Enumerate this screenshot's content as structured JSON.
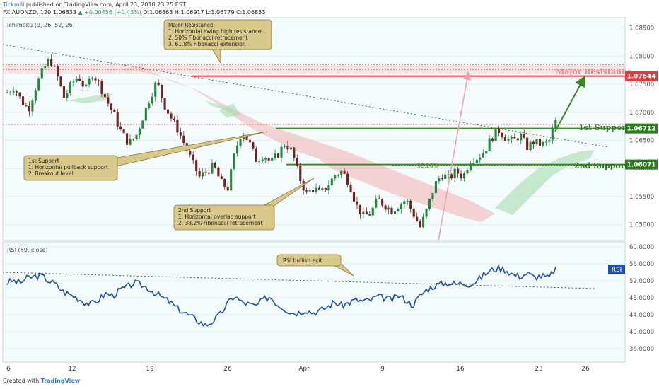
{
  "header": {
    "brand": "Tickmill",
    "published": "published on TradingView.com, April 23, 2018 23:25 EST",
    "symbol": "FX:AUDNZD, 120",
    "last": "1.06833",
    "change": "▲ +0.00456 (+0.43%)",
    "ohlc": "O:1.06863 H:1.06917 L:1.06779 C:1.06833"
  },
  "footer": {
    "created_with": "Created with",
    "brand": "TradingView"
  },
  "colors": {
    "candle_up": "#1f8a3c",
    "candle_down": "#7a1f1f",
    "resistance": "#e03b3b",
    "support": "#3b8a1f",
    "rsi_line": "#1f4fa8",
    "cloud_red": "#f2b8b8",
    "cloud_green": "#a9dcae",
    "annotation_bg": "#d8c88a",
    "axis_label_red": "#e03b3b",
    "axis_label_green": "#2e7d1f",
    "plot_bg": "#f3fbfd"
  },
  "chart_data": [
    {
      "type": "candlestick",
      "indicator_label": "Ichimoku (9, 26, 52, 26)",
      "x_ticks": [
        "6",
        "12",
        "19",
        "26",
        "Apr",
        "9",
        "16",
        "23",
        "26"
      ],
      "y_ticks": [
        "1.08500",
        "1.08000",
        "1.07500",
        "1.07000",
        "1.06500",
        "1.06000",
        "1.05500",
        "1.05000"
      ],
      "ylim": [
        1.0477,
        1.0862
      ],
      "levels": [
        {
          "name": "Major Resistance",
          "value": 1.07644,
          "label": "1.07644"
        },
        {
          "name": "1st Support",
          "value": 1.06712,
          "label": "1.06712"
        },
        {
          "name": "2nd Support",
          "value": 1.06071,
          "label": "1.06071"
        }
      ],
      "fib_label": "38.20%",
      "price_path": [
        1.0735,
        1.0745,
        1.072,
        1.0705,
        1.0745,
        1.0775,
        1.0795,
        1.0765,
        1.0725,
        1.075,
        1.0765,
        1.074,
        1.077,
        1.0748,
        1.072,
        1.0695,
        1.0665,
        1.0645,
        1.0655,
        1.069,
        1.0725,
        1.0755,
        1.0715,
        1.069,
        1.0668,
        1.064,
        1.061,
        1.0585,
        1.0595,
        1.0605,
        1.0575,
        1.0565,
        1.063,
        1.0668,
        1.0645,
        1.0615,
        1.0625,
        1.061,
        1.0625,
        1.0645,
        1.063,
        1.0585,
        1.0555,
        1.0565,
        1.0555,
        1.057,
        1.0588,
        1.0595,
        1.0575,
        1.0535,
        1.0515,
        1.052,
        1.0545,
        1.0535,
        1.0525,
        1.0535,
        1.0545,
        1.052,
        1.0495,
        1.053,
        1.057,
        1.059,
        1.0582,
        1.0595,
        1.0585,
        1.0615,
        1.062,
        1.063,
        1.0655,
        1.0668,
        1.0655,
        1.0648,
        1.066,
        1.0638,
        1.0648,
        1.0642,
        1.0645,
        1.0683
      ],
      "annotations": [
        {
          "title": "Major Resistance",
          "lines": [
            "1. Horizontal swing high resistance",
            "2. 50% Fibonacci retracement",
            "3. 61.8% Fibonacci extension"
          ]
        },
        {
          "title": "1st Support",
          "lines": [
            "1. Horizontal pullback support",
            "2. Breakout level"
          ]
        },
        {
          "title": "2nd Support",
          "lines": [
            "1. Horizontal overlap support",
            "2. 38.2% Fibonacci retracement"
          ]
        }
      ]
    },
    {
      "type": "line",
      "indicator_label": "RSI (89, close)",
      "series_tag": "RSI",
      "y_ticks": [
        "60.0000",
        "56.0000",
        "52.0000",
        "48.0000",
        "44.0000",
        "40.0000",
        "36.0000"
      ],
      "ylim": [
        33.5,
        60.5
      ],
      "values": [
        51.5,
        52,
        51.5,
        52.6,
        53,
        53.2,
        52,
        51.2,
        49.5,
        48.8,
        48,
        47,
        46.5,
        47.5,
        49,
        48.5,
        49.8,
        50.5,
        51.5,
        51,
        50.2,
        49,
        48,
        47,
        45.5,
        44.5,
        43.5,
        42.5,
        41.5,
        42.5,
        44,
        46.5,
        48.5,
        47,
        46.5,
        46,
        47.5,
        48.3,
        46.5,
        45.5,
        44.5,
        44.5,
        45.2,
        44.5,
        45,
        45.8,
        47,
        46.2,
        46.8,
        47.5,
        47.2,
        47.4,
        48.3,
        48,
        47.5,
        48.5,
        47.5,
        46.2,
        48.5,
        50,
        50.8,
        51.3,
        51.5,
        51.2,
        51.5,
        51.2,
        52,
        53.5,
        54.5,
        55,
        54.6,
        53.5,
        53,
        53.8,
        52.8,
        53.2,
        52.6,
        55
      ],
      "annotation": "RSI bullish exit"
    }
  ]
}
